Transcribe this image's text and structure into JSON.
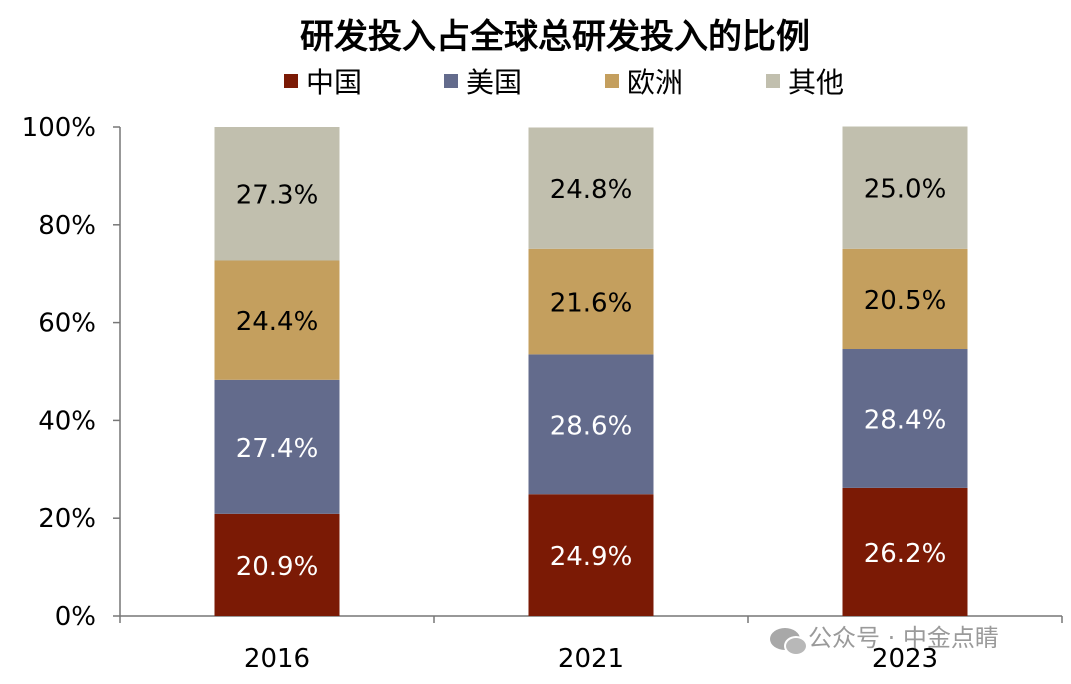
{
  "chart_data": {
    "type": "bar",
    "stacked": true,
    "title": "研发投入占全球总研发投入的比例",
    "categories": [
      "2016",
      "2021",
      "2023"
    ],
    "series": [
      {
        "name": "中国",
        "color": "#7b1a05",
        "values": [
          20.9,
          24.9,
          26.2
        ],
        "labels": [
          "20.9%",
          "24.9%",
          "26.2%"
        ],
        "label_color": "#ffffff"
      },
      {
        "name": "美国",
        "color": "#636b8c",
        "values": [
          27.4,
          28.6,
          28.4
        ],
        "labels": [
          "27.4%",
          "28.6%",
          "28.4%"
        ],
        "label_color": "#ffffff"
      },
      {
        "name": "欧洲",
        "color": "#c49f5e",
        "values": [
          24.4,
          21.6,
          20.5
        ],
        "labels": [
          "24.4%",
          "21.6%",
          "20.5%"
        ],
        "label_color": "#000000"
      },
      {
        "name": "其他",
        "color": "#c1bfae",
        "values": [
          27.3,
          24.8,
          25.0
        ],
        "labels": [
          "27.3%",
          "24.8%",
          "25.0%"
        ],
        "label_color": "#000000"
      }
    ],
    "ylim": [
      0,
      100
    ],
    "yticks": [
      "0%",
      "20%",
      "40%",
      "60%",
      "80%",
      "100%"
    ],
    "grid": false,
    "legend_position": "top"
  },
  "watermark": "公众号 · 中金点睛"
}
